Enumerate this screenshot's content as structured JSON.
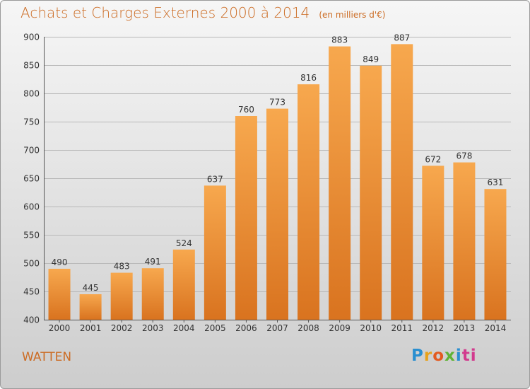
{
  "title": "Achats et Charges Externes 2000 à 2014",
  "subtitle": "(en milliers d'€)",
  "commune": "WATTEN",
  "logo_letters": [
    "P",
    "r",
    "o",
    "x",
    "i",
    "ti"
  ],
  "colors": {
    "accent": "#cc6c24",
    "bar_top": "#f7a84e",
    "bar_bottom": "#d9731f",
    "grid": "#b8b8b8"
  },
  "chart_data": {
    "type": "bar",
    "title": "Achats et Charges Externes 2000 à 2014",
    "subtitle": "(en milliers d'€)",
    "categories": [
      "2000",
      "2001",
      "2002",
      "2003",
      "2004",
      "2005",
      "2006",
      "2007",
      "2008",
      "2009",
      "2010",
      "2011",
      "2012",
      "2013",
      "2014"
    ],
    "values": [
      490,
      445,
      483,
      491,
      524,
      637,
      760,
      773,
      816,
      883,
      849,
      887,
      672,
      678,
      631
    ],
    "ylim": [
      400,
      900
    ],
    "yticks": [
      400,
      450,
      500,
      550,
      600,
      650,
      700,
      750,
      800,
      850,
      900
    ],
    "grid": true,
    "data_labels": true
  }
}
